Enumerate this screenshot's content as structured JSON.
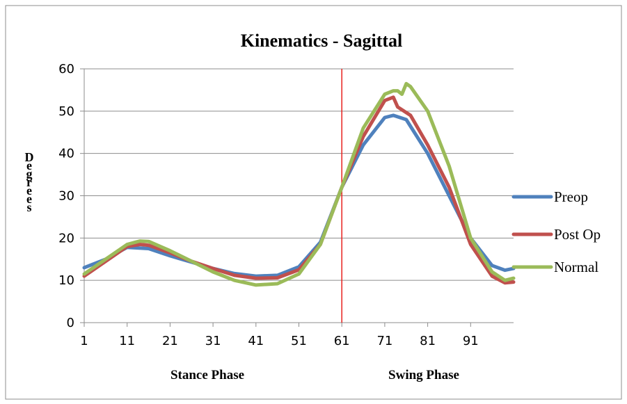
{
  "chart_data": {
    "type": "line",
    "title": "Kinematics - Sagittal",
    "ylabel": "Degrees",
    "xlabel_regions": [
      "Stance Phase",
      "Swing Phase"
    ],
    "ylim": [
      0,
      60
    ],
    "yticks": [
      0,
      10,
      20,
      30,
      40,
      50,
      60
    ],
    "xlim": [
      1,
      101
    ],
    "xticks": [
      1,
      11,
      21,
      31,
      41,
      51,
      61,
      71,
      81,
      91
    ],
    "grid": "horizontal",
    "legend_position": "right",
    "phase_divider": {
      "x": 61,
      "color": "#e8201c"
    },
    "series": [
      {
        "name": "Preop",
        "color": "#4f81bd",
        "points": [
          [
            1,
            13
          ],
          [
            6,
            15
          ],
          [
            11,
            17.8
          ],
          [
            16,
            17.5
          ],
          [
            21,
            15.8
          ],
          [
            26,
            14.3
          ],
          [
            31,
            12.8
          ],
          [
            36,
            11.6
          ],
          [
            41,
            11
          ],
          [
            46,
            11.2
          ],
          [
            51,
            13.2
          ],
          [
            56,
            19
          ],
          [
            61,
            32
          ],
          [
            66,
            42
          ],
          [
            71,
            48.5
          ],
          [
            73,
            49
          ],
          [
            76,
            48
          ],
          [
            81,
            40
          ],
          [
            86,
            30
          ],
          [
            91,
            20
          ],
          [
            96,
            13.5
          ],
          [
            99,
            12.4
          ],
          [
            101,
            12.8
          ]
        ]
      },
      {
        "name": "Post Op",
        "color": "#c0504d",
        "points": [
          [
            1,
            11
          ],
          [
            6,
            14.5
          ],
          [
            11,
            18
          ],
          [
            14,
            18.5
          ],
          [
            16,
            18.3
          ],
          [
            21,
            16.5
          ],
          [
            26,
            14.5
          ],
          [
            31,
            12.8
          ],
          [
            36,
            11.2
          ],
          [
            41,
            10.5
          ],
          [
            46,
            10.6
          ],
          [
            51,
            12.5
          ],
          [
            56,
            18.5
          ],
          [
            61,
            32
          ],
          [
            66,
            44
          ],
          [
            71,
            52.5
          ],
          [
            73,
            53.3
          ],
          [
            74,
            51
          ],
          [
            77,
            49
          ],
          [
            81,
            42
          ],
          [
            86,
            32
          ],
          [
            91,
            18.5
          ],
          [
            96,
            11
          ],
          [
            99,
            9.4
          ],
          [
            101,
            9.6
          ]
        ]
      },
      {
        "name": "Normal",
        "color": "#9bbb59",
        "points": [
          [
            1,
            11.5
          ],
          [
            6,
            15
          ],
          [
            11,
            18.5
          ],
          [
            14,
            19.3
          ],
          [
            16,
            19.2
          ],
          [
            21,
            17
          ],
          [
            26,
            14.5
          ],
          [
            31,
            12
          ],
          [
            36,
            10
          ],
          [
            41,
            8.9
          ],
          [
            46,
            9.2
          ],
          [
            51,
            11.5
          ],
          [
            56,
            18.5
          ],
          [
            61,
            32
          ],
          [
            66,
            46
          ],
          [
            71,
            54
          ],
          [
            73,
            54.8
          ],
          [
            74,
            54.8
          ],
          [
            75,
            54
          ],
          [
            76,
            56.5
          ],
          [
            77,
            55.8
          ],
          [
            81,
            50
          ],
          [
            86,
            37
          ],
          [
            91,
            20
          ],
          [
            96,
            12
          ],
          [
            99,
            10
          ],
          [
            101,
            10.5
          ]
        ]
      }
    ]
  }
}
